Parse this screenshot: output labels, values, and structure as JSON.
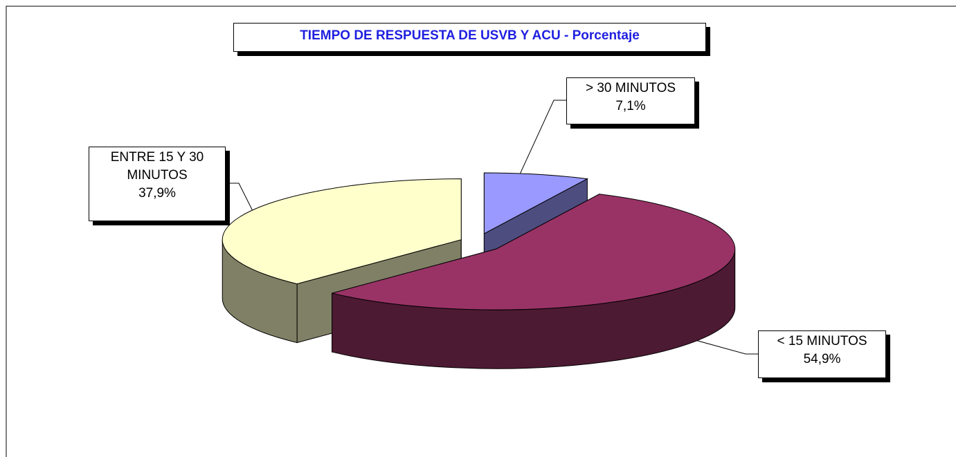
{
  "chart_data": {
    "type": "pie",
    "title": "TIEMPO DE RESPUESTA DE USVB Y ACU - Porcentaje",
    "categories": [
      "> 30 MINUTOS",
      "< 15 MINUTOS",
      "ENTRE 15 Y 30 MINUTOS"
    ],
    "values": [
      7.1,
      54.9,
      37.9
    ],
    "value_labels": [
      "7,1%",
      "54,9%",
      "37,9%"
    ],
    "colors": [
      "#9999ff",
      "#993366",
      "#ffffcc"
    ]
  }
}
